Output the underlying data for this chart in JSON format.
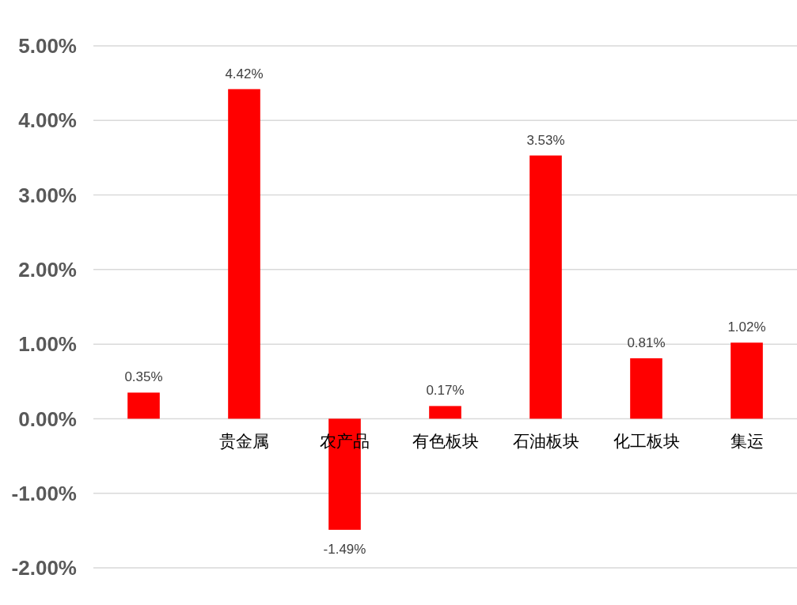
{
  "chart_data": {
    "type": "bar",
    "categories": [
      null,
      "贵金属",
      "农产品",
      "有色板块",
      "石油板块",
      "化工板块",
      "集运"
    ],
    "values": [
      0.35,
      4.42,
      -1.49,
      0.17,
      3.53,
      0.81,
      1.02
    ],
    "value_labels": [
      "0.35%",
      "4.42%",
      "-1.49%",
      "0.17%",
      "3.53%",
      "0.81%",
      "1.02%"
    ],
    "color": "#ff0000",
    "ylim": [
      -2,
      5
    ],
    "yticks": [
      {
        "value": -2,
        "label": "-2.00%"
      },
      {
        "value": -1,
        "label": "-1.00%"
      },
      {
        "value": 0,
        "label": "0.00%"
      },
      {
        "value": 1,
        "label": "1.00%"
      },
      {
        "value": 2,
        "label": "2.00%"
      },
      {
        "value": 3,
        "label": "3.00%"
      },
      {
        "value": 4,
        "label": "4.00%"
      },
      {
        "value": 5,
        "label": "5.00%"
      }
    ],
    "grid": "y"
  }
}
